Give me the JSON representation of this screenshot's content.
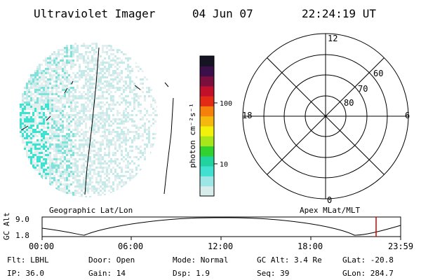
{
  "header": {
    "title": "Ultraviolet Imager",
    "date": "04 Jun 07",
    "time": "22:24:19 UT"
  },
  "colorbar": {
    "label": "photon cm⁻²s⁻¹",
    "ticks": [
      "100",
      "10"
    ],
    "colors": [
      "#d9ecec",
      "#9ee6e6",
      "#41e0d0",
      "#22d3a0",
      "#31d22f",
      "#a6e61b",
      "#f1f10b",
      "#f5b80c",
      "#f5800b",
      "#e32a14",
      "#c0102a",
      "#7a0f3e",
      "#3a0f4a",
      "#141423"
    ]
  },
  "polar": {
    "ring_labels": [
      "60",
      "70",
      "80"
    ],
    "mlt_labels": {
      "top": "12",
      "bottom": "0",
      "left": "18",
      "right": "6"
    }
  },
  "timeline": {
    "left_label": "Geographic Lat/Lon",
    "right_label": "Apex MLat/MLT",
    "yaxis_title": "GC Alt",
    "yticks": [
      "9.0",
      "1.8"
    ],
    "xticks": [
      "00:00",
      "06:00",
      "12:00",
      "18:00",
      "23:59"
    ],
    "marker_color": "#cc0000"
  },
  "footer": {
    "row1": [
      {
        "key": "Flt:",
        "val": "LBHL"
      },
      {
        "key": "Door:",
        "val": "Open"
      },
      {
        "key": "Mode:",
        "val": "Normal"
      },
      {
        "key": "GC Alt:",
        "val": "3.4 Re"
      },
      {
        "key": "GLat:",
        "val": "-20.8"
      }
    ],
    "row2": [
      {
        "key": "IP:",
        "val": "36.0"
      },
      {
        "key": "Gain:",
        "val": "14"
      },
      {
        "key": "Dsp:",
        "val": "1.9"
      },
      {
        "key": "Seq:",
        "val": "39"
      },
      {
        "key": "GLon:",
        "val": "284.7"
      }
    ]
  }
}
